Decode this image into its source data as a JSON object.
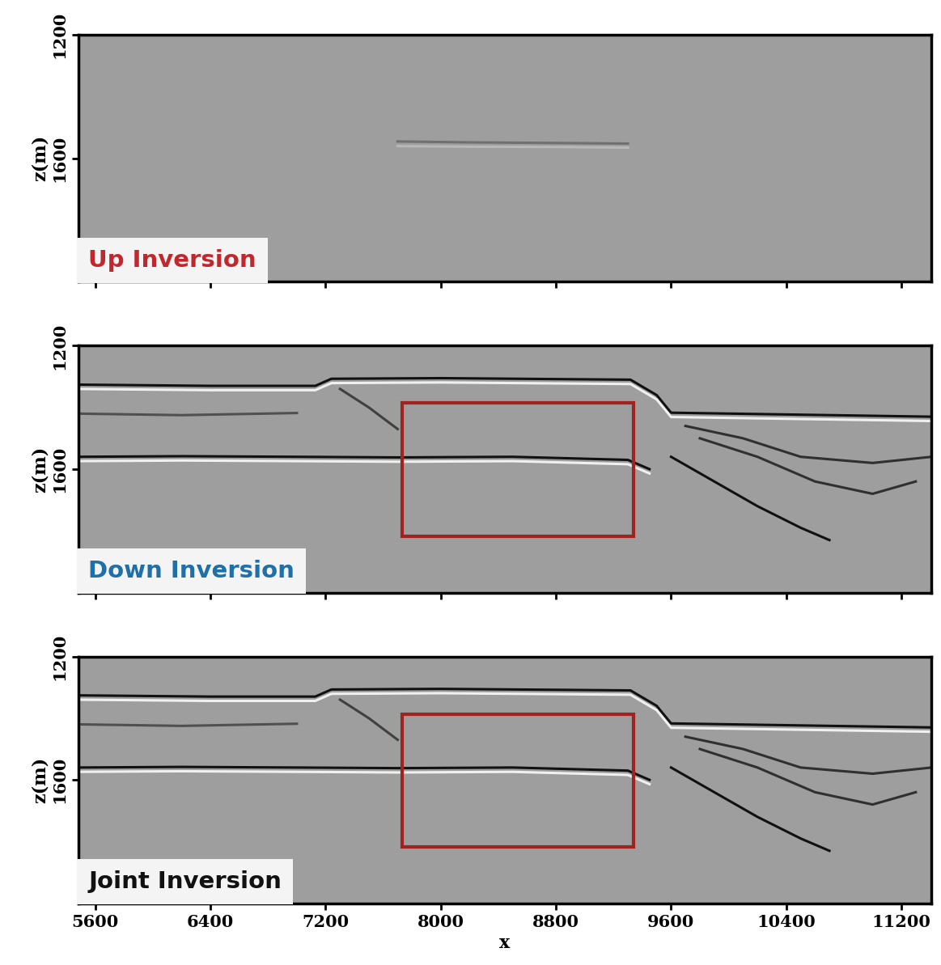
{
  "chart_data": [
    {
      "type": "line",
      "annotations": [
        {
          "text": "Up Inversion",
          "color": "#c0282d"
        }
      ],
      "ylabel": "z(m)",
      "xlim": [
        5480,
        11410
      ],
      "xticks": [
        5600,
        6400,
        7200,
        8000,
        8800,
        9600,
        10400,
        11200
      ],
      "ylim": [
        2000,
        1200
      ],
      "yticks": [
        1200,
        1600
      ],
      "tick_labels": "y",
      "series": [
        {
          "color": "#707070",
          "x": [
            7700,
            8200,
            8800,
            9300
          ],
          "values": [
            1545,
            1548,
            1550,
            1552
          ]
        },
        {
          "color": "#b8b8b8",
          "x": [
            7700,
            8200,
            8800,
            9300
          ],
          "values": [
            1560,
            1562,
            1563,
            1565
          ]
        }
      ]
    },
    {
      "type": "line",
      "annotations": [
        {
          "text": "Down Inversion",
          "color": "#1f6fa8"
        }
      ],
      "ylabel": "z(m)",
      "xlim": [
        5480,
        11410
      ],
      "xticks": [
        5600,
        6400,
        7200,
        8000,
        8800,
        9600,
        10400,
        11200
      ],
      "ylim": [
        2000,
        1200
      ],
      "yticks": [
        1200,
        1600
      ],
      "tick_labels": "y",
      "boxes": [
        {
          "x": [
            7734,
            9341
          ],
          "y": [
            1386,
            1818
          ],
          "color": "#a0231f"
        }
      ],
      "series": [
        {
          "color": "#111111",
          "x": [
            5480,
            6400,
            7128,
            7240,
            8000,
            9318,
            9500,
            9600,
            11410
          ],
          "values": [
            1326,
            1330,
            1330,
            1307,
            1305,
            1310,
            1360,
            1417,
            1430
          ]
        },
        {
          "color": "#f0f0f0",
          "x": [
            5480,
            6400,
            7128,
            7240,
            8000,
            9318,
            9500,
            9600,
            11410
          ],
          "values": [
            1340,
            1344,
            1344,
            1321,
            1319,
            1324,
            1374,
            1431,
            1444
          ]
        },
        {
          "color": "#111111",
          "x": [
            5480,
            6200,
            7000,
            7700,
            8500,
            9300,
            9450
          ],
          "values": [
            1560,
            1558,
            1560,
            1562,
            1560,
            1570,
            1600
          ]
        },
        {
          "color": "#f0f0f0",
          "x": [
            5480,
            6200,
            7000,
            7700,
            8500,
            9300,
            9450
          ],
          "values": [
            1574,
            1572,
            1574,
            1576,
            1574,
            1584,
            1614
          ]
        },
        {
          "color": "#505050",
          "x": [
            5480,
            6200,
            7000
          ],
          "values": [
            1420,
            1425,
            1418
          ]
        },
        {
          "color": "#404040",
          "x": [
            7300,
            7500,
            7700
          ],
          "values": [
            1340,
            1400,
            1470
          ]
        },
        {
          "color": "#303030",
          "x": [
            9700,
            10100,
            10500,
            11000,
            11410
          ],
          "values": [
            1460,
            1500,
            1560,
            1580,
            1560
          ]
        },
        {
          "color": "#303030",
          "x": [
            9800,
            10200,
            10600,
            11000,
            11300
          ],
          "values": [
            1500,
            1560,
            1640,
            1680,
            1640
          ]
        },
        {
          "color": "#111111",
          "x": [
            9600,
            9900,
            10200,
            10500,
            10700
          ],
          "values": [
            1560,
            1640,
            1720,
            1790,
            1830
          ]
        }
      ]
    },
    {
      "type": "line",
      "annotations": [
        {
          "text": "Joint Inversion",
          "color": "#111111"
        }
      ],
      "xlabel": "x",
      "ylabel": "z(m)",
      "xlim": [
        5480,
        11410
      ],
      "xticks": [
        5600,
        6400,
        7200,
        8000,
        8800,
        9600,
        10400,
        11200
      ],
      "ylim": [
        2000,
        1200
      ],
      "yticks": [
        1200,
        1600
      ],
      "boxes": [
        {
          "x": [
            7734,
            9341
          ],
          "y": [
            1386,
            1818
          ],
          "color": "#a0231f"
        }
      ],
      "series": [
        {
          "color": "#111111",
          "x": [
            5480,
            6400,
            7128,
            7240,
            8000,
            9318,
            9500,
            9600,
            11410
          ],
          "values": [
            1326,
            1330,
            1330,
            1307,
            1305,
            1310,
            1360,
            1417,
            1430
          ]
        },
        {
          "color": "#f0f0f0",
          "x": [
            5480,
            6400,
            7128,
            7240,
            8000,
            9318,
            9500,
            9600,
            11410
          ],
          "values": [
            1340,
            1344,
            1344,
            1321,
            1319,
            1324,
            1374,
            1431,
            1444
          ]
        },
        {
          "color": "#111111",
          "x": [
            5480,
            6200,
            7000,
            7700,
            8500,
            9300,
            9450
          ],
          "values": [
            1560,
            1558,
            1560,
            1562,
            1560,
            1570,
            1600
          ]
        },
        {
          "color": "#f0f0f0",
          "x": [
            5480,
            6200,
            7000,
            7700,
            8500,
            9300,
            9450
          ],
          "values": [
            1574,
            1572,
            1574,
            1576,
            1574,
            1584,
            1614
          ]
        },
        {
          "color": "#505050",
          "x": [
            5480,
            6200,
            7000
          ],
          "values": [
            1420,
            1425,
            1418
          ]
        },
        {
          "color": "#404040",
          "x": [
            7300,
            7500,
            7700
          ],
          "values": [
            1340,
            1400,
            1470
          ]
        },
        {
          "color": "#303030",
          "x": [
            9700,
            10100,
            10500,
            11000,
            11410
          ],
          "values": [
            1460,
            1500,
            1560,
            1580,
            1560
          ]
        },
        {
          "color": "#303030",
          "x": [
            9800,
            10200,
            10600,
            11000,
            11300
          ],
          "values": [
            1500,
            1560,
            1640,
            1680,
            1640
          ]
        },
        {
          "color": "#111111",
          "x": [
            9600,
            9900,
            10200,
            10500,
            10700
          ],
          "values": [
            1560,
            1640,
            1720,
            1790,
            1830
          ]
        }
      ]
    }
  ]
}
